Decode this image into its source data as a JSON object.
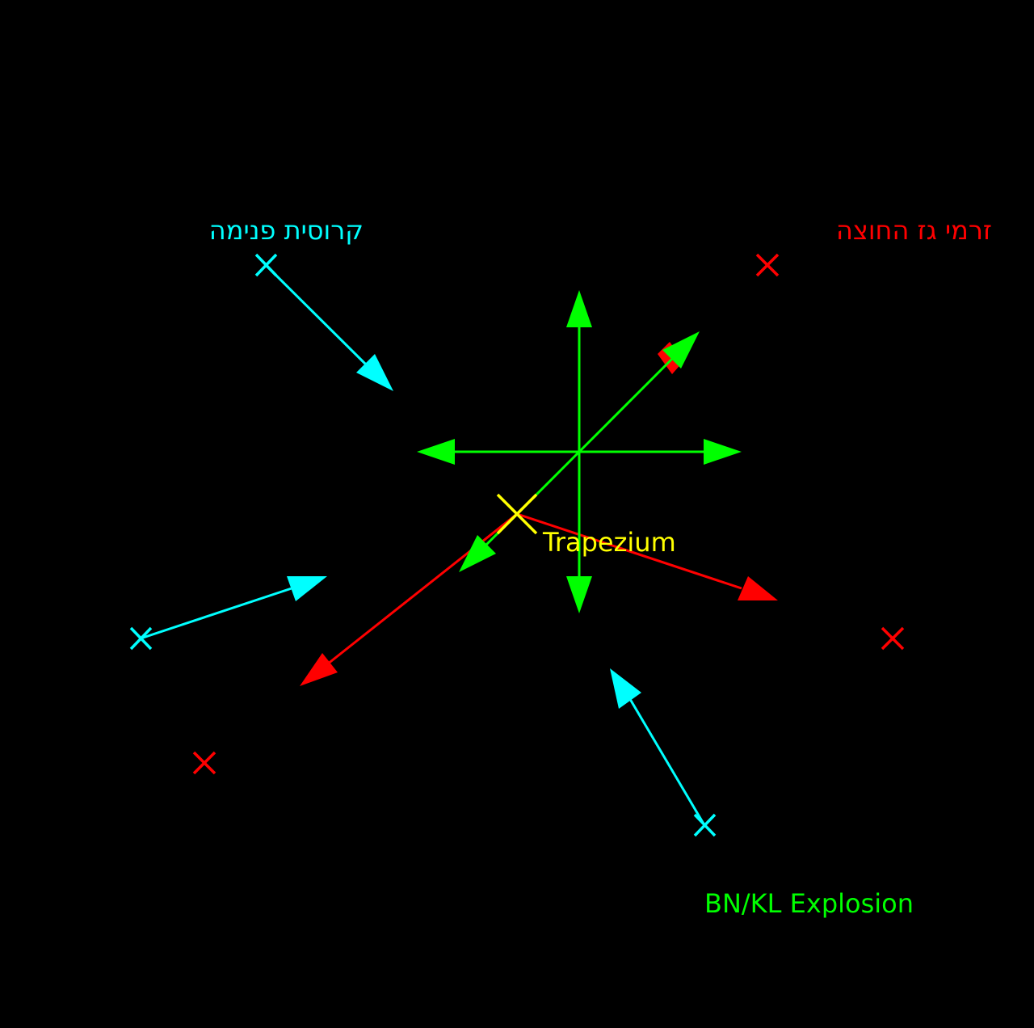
{
  "labels": {
    "inner_stars": "קרוסית פנימה",
    "outer_stars": "זרמי גז החוצה",
    "trapezium": "Trapezium",
    "explosion": "BN/KL Explosion"
  },
  "colors": {
    "background": "#000000",
    "inner": "#00ffff",
    "outer": "#ff0000",
    "explosion": "#00ff00",
    "trapezium": "#ffff00"
  },
  "icons": {
    "marker": "x-mark",
    "arrowhead": "triangle-arrowhead"
  }
}
